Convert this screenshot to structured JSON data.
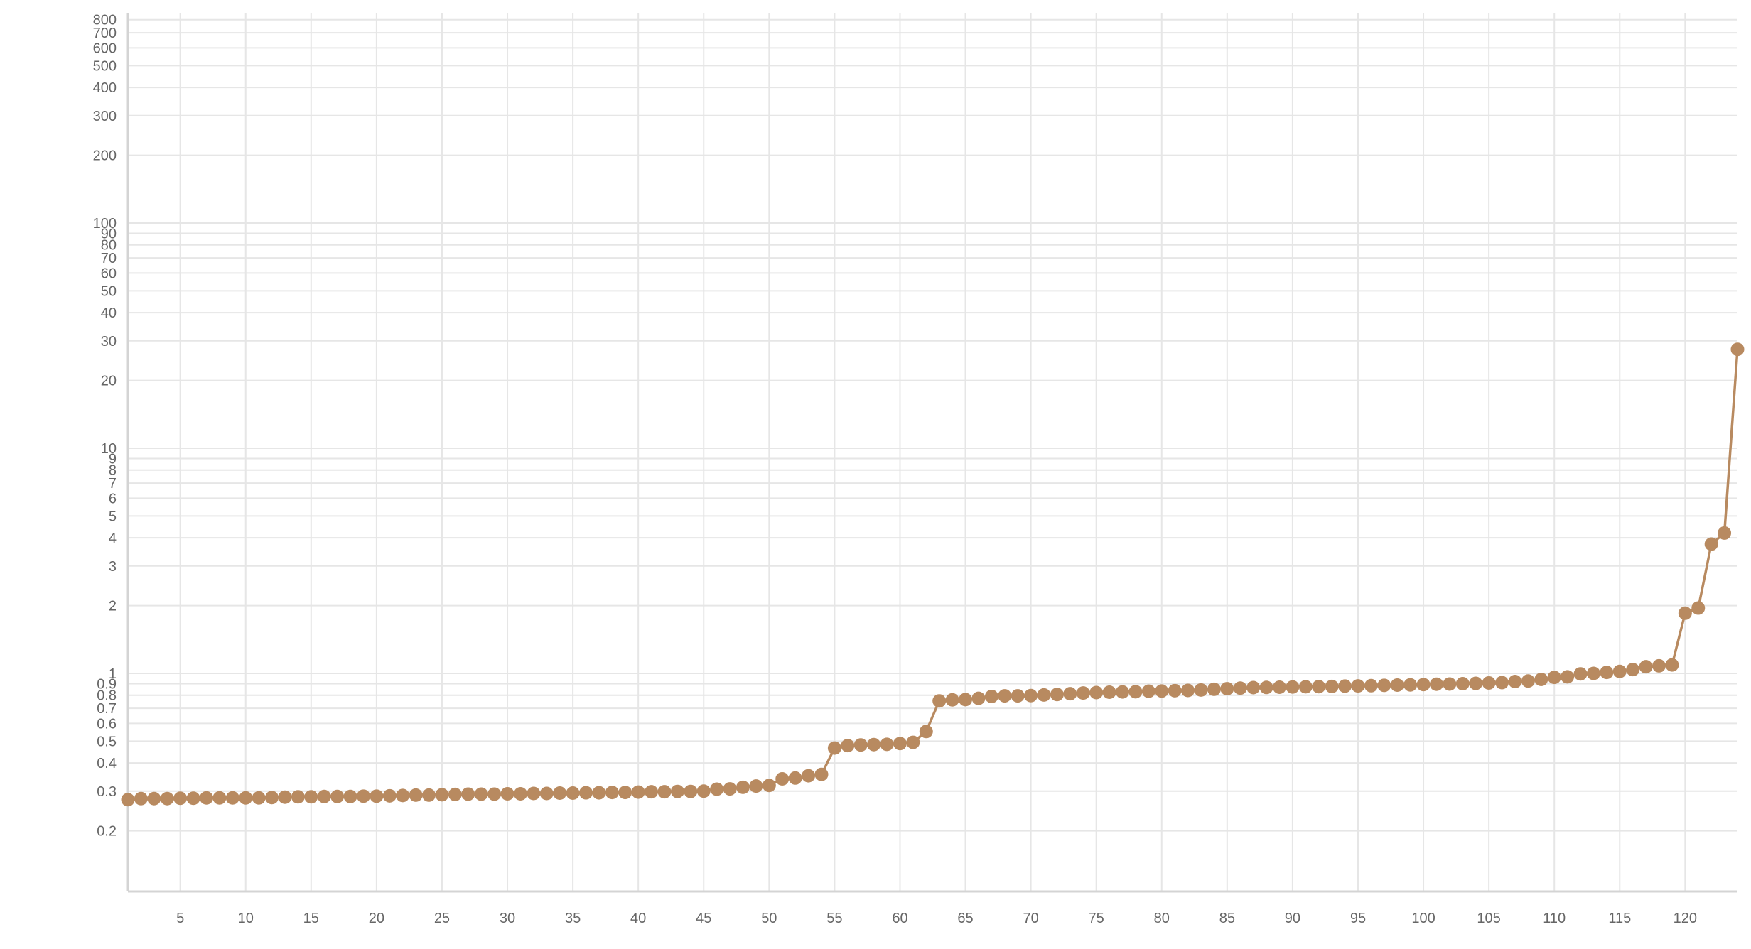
{
  "chart_data": {
    "type": "line",
    "title": "",
    "xlabel": "",
    "ylabel": "",
    "x_scale": "linear",
    "y_scale": "log",
    "xlim": [
      1,
      124
    ],
    "ylim": [
      0.1,
      900
    ],
    "grid": true,
    "legend": "none",
    "x_ticks": [
      5,
      10,
      15,
      20,
      25,
      30,
      35,
      40,
      45,
      50,
      55,
      60,
      65,
      70,
      75,
      80,
      85,
      90,
      95,
      100,
      105,
      110,
      115,
      120
    ],
    "x_tick_labels": [
      "5",
      "10",
      "15",
      "20",
      "25",
      "30",
      "35",
      "40",
      "45",
      "50",
      "55",
      "60",
      "65",
      "70",
      "75",
      "80",
      "85",
      "90",
      "95",
      "100",
      "105",
      "110",
      "115",
      "120"
    ],
    "y_ticks": [
      0.2,
      0.3,
      0.4,
      0.5,
      0.6,
      0.7,
      0.8,
      0.9,
      1,
      2,
      3,
      4,
      5,
      6,
      7,
      8,
      9,
      10,
      20,
      30,
      40,
      50,
      60,
      70,
      80,
      90,
      100,
      200,
      300,
      400,
      500,
      600,
      700,
      800
    ],
    "y_tick_labels": [
      "0.2",
      "0.3",
      "0.4",
      "0.5",
      "0.6",
      "0.7",
      "0.8",
      "0.9",
      "1",
      "2",
      "3",
      "4",
      "5",
      "6",
      "7",
      "8",
      "9",
      "10",
      "20",
      "30",
      "40",
      "50",
      "60",
      "70",
      "80",
      "90",
      "100",
      "200",
      "300",
      "400",
      "500",
      "600",
      "700",
      "800"
    ],
    "series": [
      {
        "color": "#b88a60",
        "x": [
          1,
          2,
          3,
          4,
          5,
          6,
          7,
          8,
          9,
          10,
          11,
          12,
          13,
          14,
          15,
          16,
          17,
          18,
          19,
          20,
          21,
          22,
          23,
          24,
          25,
          26,
          27,
          28,
          29,
          30,
          31,
          32,
          33,
          34,
          35,
          36,
          37,
          38,
          39,
          40,
          41,
          42,
          43,
          44,
          45,
          46,
          47,
          48,
          49,
          50,
          51,
          52,
          53,
          54,
          55,
          56,
          57,
          58,
          59,
          60,
          61,
          62,
          63,
          64,
          65,
          66,
          67,
          68,
          69,
          70,
          71,
          72,
          73,
          74,
          75,
          76,
          77,
          78,
          79,
          80,
          81,
          82,
          83,
          84,
          85,
          86,
          87,
          88,
          89,
          90,
          91,
          92,
          93,
          94,
          95,
          96,
          97,
          98,
          99,
          100,
          101,
          102,
          103,
          104,
          105,
          106,
          107,
          108,
          109,
          110,
          111,
          112,
          113,
          114,
          115,
          116,
          117,
          118,
          119,
          120,
          121,
          122,
          123,
          124
        ],
        "values": [
          0.275,
          0.278,
          0.278,
          0.278,
          0.279,
          0.279,
          0.28,
          0.28,
          0.28,
          0.28,
          0.28,
          0.281,
          0.282,
          0.283,
          0.283,
          0.284,
          0.284,
          0.284,
          0.285,
          0.285,
          0.286,
          0.287,
          0.288,
          0.288,
          0.289,
          0.29,
          0.291,
          0.291,
          0.291,
          0.292,
          0.292,
          0.293,
          0.293,
          0.294,
          0.294,
          0.295,
          0.295,
          0.296,
          0.296,
          0.297,
          0.298,
          0.298,
          0.299,
          0.299,
          0.3,
          0.306,
          0.307,
          0.312,
          0.316,
          0.318,
          0.34,
          0.343,
          0.351,
          0.356,
          0.466,
          0.478,
          0.481,
          0.483,
          0.484,
          0.488,
          0.494,
          0.552,
          0.755,
          0.763,
          0.765,
          0.775,
          0.79,
          0.795,
          0.795,
          0.797,
          0.802,
          0.806,
          0.812,
          0.818,
          0.822,
          0.825,
          0.827,
          0.829,
          0.833,
          0.835,
          0.838,
          0.84,
          0.844,
          0.85,
          0.855,
          0.86,
          0.865,
          0.866,
          0.868,
          0.87,
          0.872,
          0.873,
          0.875,
          0.878,
          0.88,
          0.882,
          0.885,
          0.887,
          0.889,
          0.892,
          0.895,
          0.897,
          0.9,
          0.903,
          0.907,
          0.91,
          0.92,
          0.925,
          0.94,
          0.96,
          0.965,
          0.995,
          1.0,
          1.01,
          1.02,
          1.04,
          1.07,
          1.08,
          1.09,
          1.85,
          1.95,
          3.75,
          4.2,
          27.5
        ]
      }
    ]
  }
}
